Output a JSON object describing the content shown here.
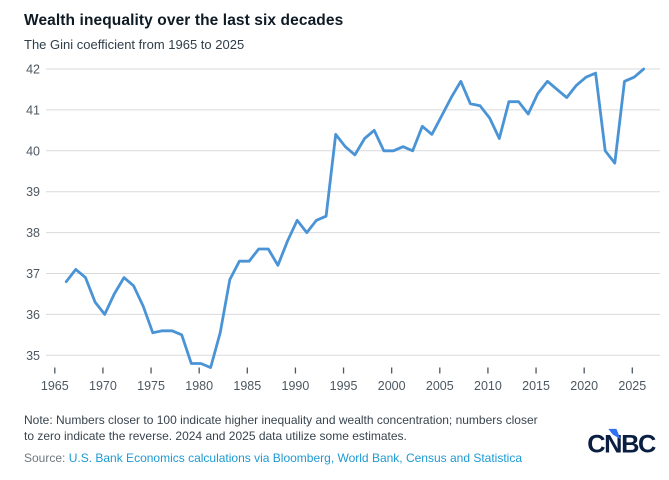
{
  "header": {
    "title": "Wealth inequality over the last six decades",
    "subtitle": "The Gini coefficient from 1965 to 2025"
  },
  "chart_data": {
    "type": "line",
    "title": "Wealth inequality over the last six decades",
    "subtitle": "The Gini coefficient from 1965 to 2025",
    "xlabel": "",
    "ylabel": "",
    "x": [
      1965,
      1966,
      1967,
      1968,
      1969,
      1970,
      1971,
      1972,
      1973,
      1974,
      1975,
      1976,
      1977,
      1978,
      1979,
      1980,
      1981,
      1982,
      1983,
      1984,
      1985,
      1986,
      1987,
      1988,
      1989,
      1990,
      1991,
      1992,
      1993,
      1994,
      1995,
      1996,
      1997,
      1998,
      1999,
      2000,
      2001,
      2002,
      2003,
      2004,
      2005,
      2006,
      2007,
      2008,
      2009,
      2010,
      2011,
      2012,
      2013,
      2014,
      2015,
      2016,
      2017,
      2018,
      2019,
      2020,
      2021,
      2022,
      2023,
      2024,
      2025
    ],
    "values": [
      36.8,
      37.1,
      36.9,
      36.3,
      36.0,
      36.5,
      36.9,
      36.7,
      36.2,
      35.55,
      35.6,
      35.6,
      35.5,
      34.8,
      34.8,
      34.7,
      35.55,
      36.85,
      37.3,
      37.3,
      37.6,
      37.6,
      37.2,
      37.8,
      38.3,
      38.0,
      38.3,
      38.4,
      40.4,
      40.1,
      39.9,
      40.3,
      40.5,
      40.0,
      40.0,
      40.1,
      40.0,
      40.6,
      40.4,
      40.85,
      41.3,
      41.7,
      41.15,
      41.1,
      40.8,
      40.3,
      41.2,
      41.2,
      40.9,
      41.4,
      41.7,
      41.5,
      41.3,
      41.6,
      41.8,
      41.9,
      40.0,
      39.7,
      41.7,
      41.8,
      42.0
    ],
    "yticks": [
      35,
      36,
      37,
      38,
      39,
      40,
      41,
      42
    ],
    "xticks": [
      1965,
      1970,
      1975,
      1980,
      1985,
      1990,
      1995,
      2000,
      2005,
      2010,
      2015,
      2020,
      2025
    ],
    "ylim": [
      34.55,
      42.35
    ],
    "xlim": [
      1965,
      2025
    ],
    "grid": true,
    "legend": "none",
    "line_color": "#4a94d6",
    "grid_color": "#dadada",
    "axis_label_color": "#4d5760",
    "tick_color": "#4d5760"
  },
  "footer": {
    "note_line1": "Note: Numbers closer to 100 indicate higher inequality and wealth concentration; numbers closer",
    "note_line2": "to zero indicate the reverse. 2024 and 2025 data utilize some estimates.",
    "source_label": "Source:",
    "source_link_text": "U.S. Bank Economics calculations via Bloomberg, World Bank, Census and Statistica",
    "logo_text": "CNBC",
    "logo_navy": "#0a1e42",
    "logo_blue": "#3071f2"
  }
}
